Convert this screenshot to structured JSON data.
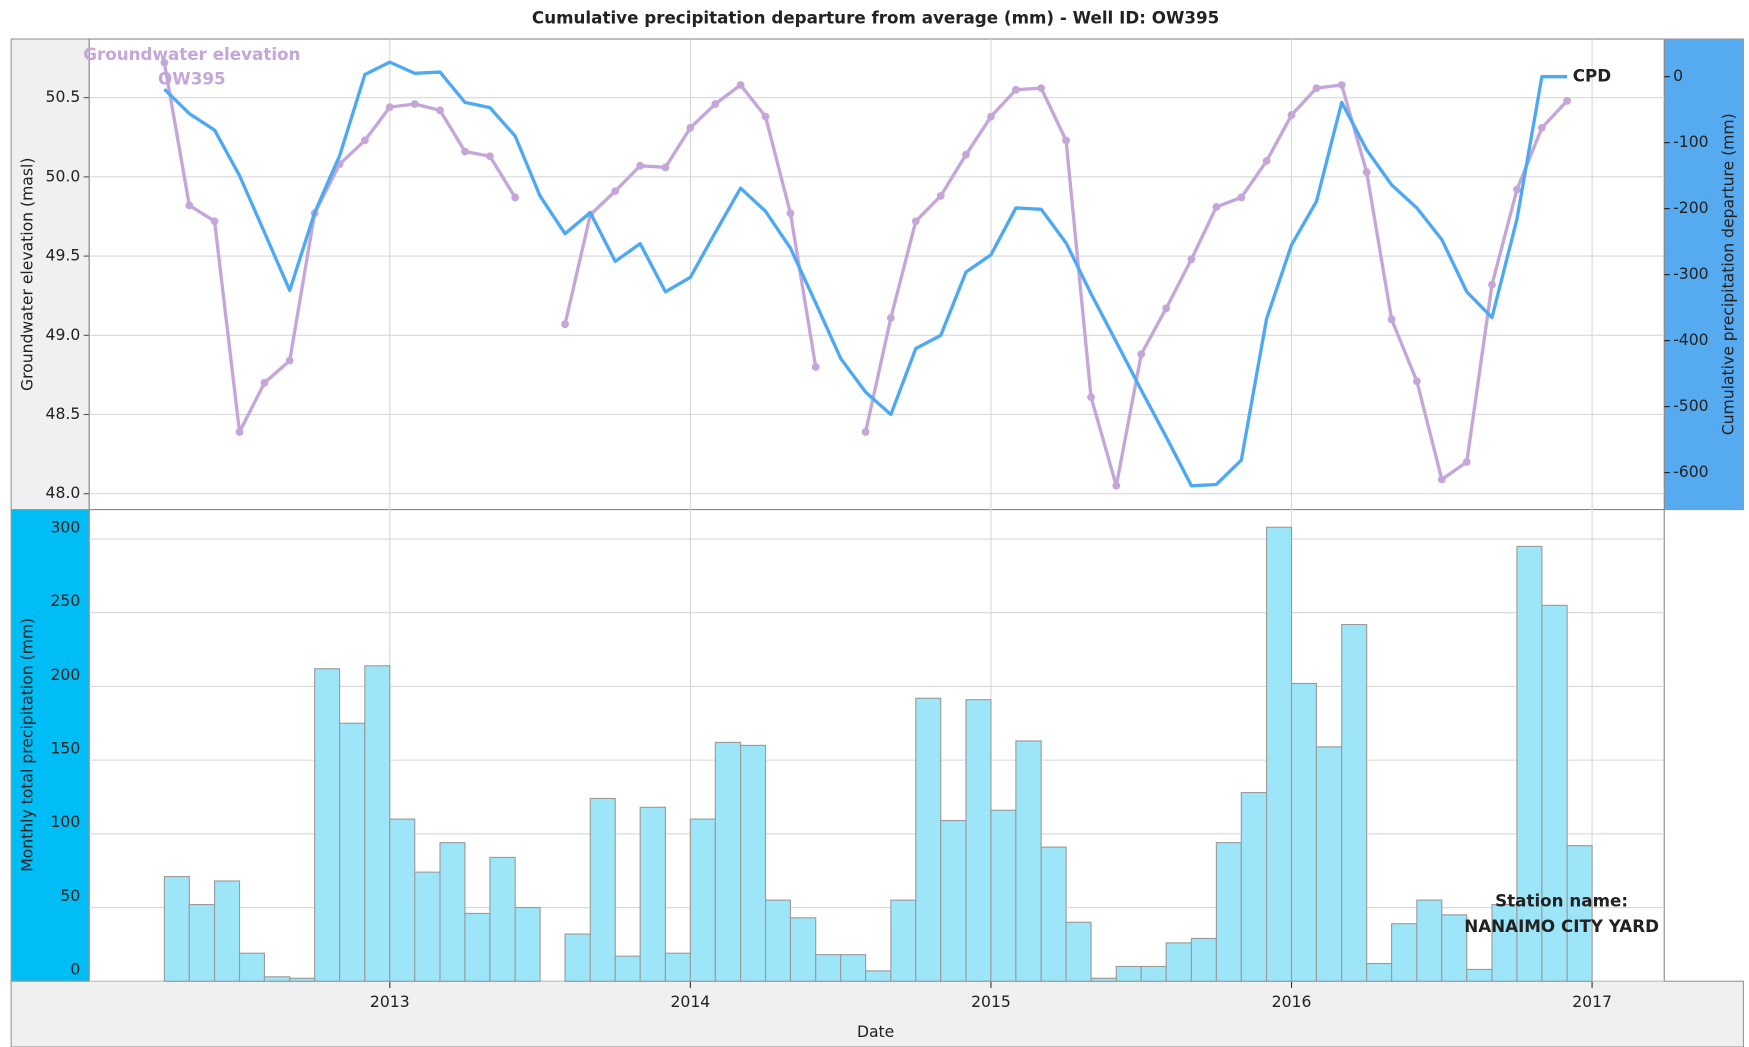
{
  "chart_data": [
    {
      "type": "line",
      "title": "Cumulative precipitation departure from average (mm) - Well ID: OW395",
      "ylabel": "Groundwater elevation (masl)",
      "y2label": "Cumulative precipitation departure (mm)",
      "xlim": [
        2012.0,
        2017.24
      ],
      "xticks": [
        2013,
        2014,
        2015,
        2016,
        2017
      ],
      "ylim": [
        47.9,
        50.87
      ],
      "yticks": [
        {
          "value": 48,
          "label": "48.0"
        },
        48.5,
        {
          "value": 49,
          "label": "49.0"
        },
        49.5,
        {
          "value": 50,
          "label": "50.0"
        },
        50.5
      ],
      "y2lim": [
        -656,
        57
      ],
      "y2ticks": [
        -600,
        -500,
        -400,
        -300,
        -200,
        -100,
        0
      ],
      "grid": true,
      "x": [
        2012.25,
        2012.333,
        2012.417,
        2012.5,
        2012.583,
        2012.667,
        2012.75,
        2012.833,
        2012.917,
        2013.0,
        2013.083,
        2013.167,
        2013.25,
        2013.333,
        2013.417,
        2013.5,
        2013.583,
        2013.667,
        2013.75,
        2013.833,
        2013.917,
        2014.0,
        2014.083,
        2014.167,
        2014.25,
        2014.333,
        2014.417,
        2014.5,
        2014.583,
        2014.667,
        2014.75,
        2014.833,
        2014.917,
        2015.0,
        2015.083,
        2015.167,
        2015.25,
        2015.333,
        2015.417,
        2015.5,
        2015.583,
        2015.667,
        2015.75,
        2015.833,
        2015.917,
        2016.0,
        2016.083,
        2016.167,
        2016.25,
        2016.333,
        2016.417,
        2016.5,
        2016.583,
        2016.667,
        2016.75,
        2016.833,
        2016.917
      ],
      "series": [
        {
          "name": "Groundwater elevation OW395",
          "color": "#c4a7d8",
          "axis": "y",
          "markers": true,
          "values": [
            50.72,
            49.82,
            49.72,
            48.39,
            48.7,
            48.84,
            49.77,
            50.08,
            50.23,
            50.44,
            50.46,
            50.42,
            50.16,
            50.13,
            49.87,
            null,
            49.07,
            49.76,
            49.91,
            50.07,
            50.06,
            50.31,
            50.46,
            50.58,
            50.38,
            49.77,
            48.8,
            null,
            48.39,
            49.11,
            49.72,
            49.88,
            50.14,
            50.38,
            50.55,
            50.56,
            50.23,
            48.61,
            48.05,
            48.88,
            49.17,
            49.48,
            49.81,
            49.87,
            50.1,
            50.39,
            50.56,
            50.58,
            50.03,
            49.1,
            48.71,
            48.09,
            48.2,
            49.32,
            49.92,
            50.31,
            50.48
          ]
        },
        {
          "name": "CPD",
          "color": "#4ea9f4",
          "axis": "y2",
          "markers": false,
          "values": [
            -19,
            -56,
            -81,
            -150,
            -236,
            -324,
            -206,
            -120,
            3,
            22,
            5,
            7,
            -39,
            -47,
            -90,
            -181,
            -238,
            -206,
            -280,
            -253,
            -326,
            -304,
            -236,
            -169,
            -204,
            -260,
            -343,
            -427,
            -478,
            -512,
            -412,
            -392,
            -296,
            -270,
            -199,
            -201,
            -252,
            -329,
            -402,
            -475,
            -546,
            -620,
            -618,
            -581,
            -367,
            -255,
            -189,
            -39,
            -111,
            -164,
            -199,
            -247,
            -326,
            -365,
            -216,
            0,
            0
          ]
        }
      ]
    },
    {
      "type": "histogram",
      "ylabel": "Monthly total precipitation (mm)",
      "xlabel": "Date",
      "xlim": [
        2012.0,
        2017.24
      ],
      "xticks": [
        2013,
        2014,
        2015,
        2016,
        2017
      ],
      "ylim": [
        0,
        320
      ],
      "yticks": [
        0,
        50,
        100,
        150,
        200,
        250,
        300
      ],
      "grid": true,
      "color": "#9de6f9",
      "bins": [
        2012.25,
        2012.333,
        2012.417,
        2012.5,
        2012.583,
        2012.667,
        2012.75,
        2012.833,
        2012.917,
        2013.0,
        2013.083,
        2013.167,
        2013.25,
        2013.333,
        2013.417,
        2013.5,
        2013.583,
        2013.667,
        2013.75,
        2013.833,
        2013.917,
        2014.0,
        2014.083,
        2014.167,
        2014.25,
        2014.333,
        2014.417,
        2014.5,
        2014.583,
        2014.667,
        2014.75,
        2014.833,
        2014.917,
        2015.0,
        2015.083,
        2015.167,
        2015.25,
        2015.333,
        2015.417,
        2015.5,
        2015.583,
        2015.667,
        2015.75,
        2015.833,
        2015.917,
        2016.0,
        2016.083,
        2016.167,
        2016.25,
        2016.333,
        2016.417,
        2016.5,
        2016.583,
        2016.667,
        2016.75,
        2016.833,
        2016.917,
        2017.0
      ],
      "values": [
        71,
        52,
        68,
        19,
        3,
        2,
        212,
        175,
        214,
        110,
        74,
        94,
        46,
        84,
        50,
        null,
        32,
        124,
        17,
        118,
        19,
        110,
        162,
        160,
        55,
        43,
        18,
        18,
        7,
        55,
        192,
        109,
        191,
        116,
        163,
        91,
        40,
        2,
        10,
        10,
        26,
        29,
        94,
        128,
        308,
        202,
        159,
        242,
        12,
        39,
        55,
        45,
        8,
        52,
        295,
        255,
        92
      ],
      "annotations": [
        "Station name:",
        "NANAIMO CITY YARD"
      ]
    }
  ]
}
